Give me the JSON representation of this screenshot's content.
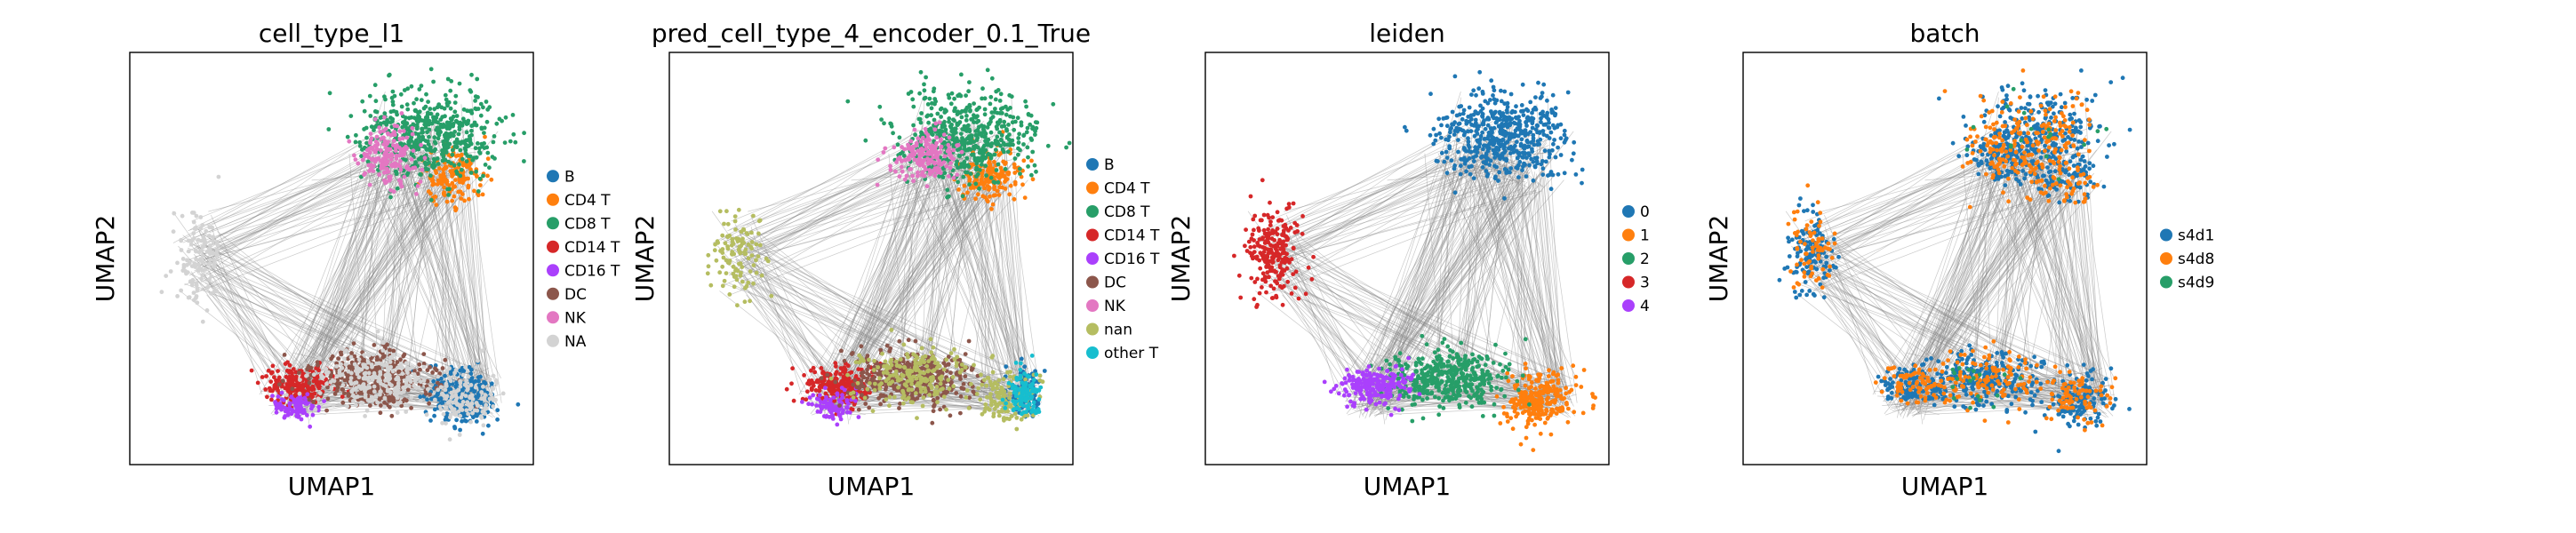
{
  "figure": {
    "background": "#ffffff"
  },
  "chart_data": [
    {
      "type": "scatter",
      "title": "cell_type_l1",
      "xlabel": "UMAP1",
      "ylabel": "UMAP2",
      "grid": false,
      "legend_position": "right",
      "edges": true,
      "categories": [
        {
          "name": "B",
          "color": "#1f77b4",
          "region": "bottom-right"
        },
        {
          "name": "CD4 T",
          "color": "#ff7f0e",
          "region": "top-right"
        },
        {
          "name": "CD8 T",
          "color": "#279e68",
          "region": "top"
        },
        {
          "name": "CD14 T",
          "color": "#d62728",
          "region": "bottom-left"
        },
        {
          "name": "CD16 T",
          "color": "#aa40fc",
          "region": "bottom-left-low"
        },
        {
          "name": "DC",
          "color": "#8c564b",
          "region": "bottom-mid"
        },
        {
          "name": "NK",
          "color": "#e377c2",
          "region": "top-left"
        },
        {
          "name": "NA",
          "color": "#d3d3d3",
          "region": "left-and-bottom"
        }
      ]
    },
    {
      "type": "scatter",
      "title": "pred_cell_type_4_encoder_0.1_True",
      "xlabel": "UMAP1",
      "ylabel": "UMAP2",
      "grid": false,
      "legend_position": "right",
      "edges": true,
      "categories": [
        {
          "name": "B",
          "color": "#1f77b4",
          "region": "bottom-right-edge"
        },
        {
          "name": "CD4 T",
          "color": "#ff7f0e",
          "region": "top-right"
        },
        {
          "name": "CD8 T",
          "color": "#279e68",
          "region": "top"
        },
        {
          "name": "CD14 T",
          "color": "#d62728",
          "region": "bottom-left"
        },
        {
          "name": "CD16 T",
          "color": "#aa40fc",
          "region": "bottom-left-low"
        },
        {
          "name": "DC",
          "color": "#8c564b",
          "region": "bottom-mid"
        },
        {
          "name": "NK",
          "color": "#e377c2",
          "region": "top-left"
        },
        {
          "name": "nan",
          "color": "#b5bd61",
          "region": "left-and-bottom"
        },
        {
          "name": "other T",
          "color": "#17becf",
          "region": "bottom-right-edge"
        }
      ]
    },
    {
      "type": "scatter",
      "title": "leiden",
      "xlabel": "UMAP1",
      "ylabel": "UMAP2",
      "grid": false,
      "legend_position": "right",
      "edges": true,
      "categories": [
        {
          "name": "0",
          "color": "#1f77b4",
          "region": "top"
        },
        {
          "name": "1",
          "color": "#ff7f0e",
          "region": "bottom-right"
        },
        {
          "name": "2",
          "color": "#279e68",
          "region": "bottom-mid"
        },
        {
          "name": "3",
          "color": "#d62728",
          "region": "left"
        },
        {
          "name": "4",
          "color": "#aa40fc",
          "region": "bottom-left"
        }
      ]
    },
    {
      "type": "scatter",
      "title": "batch",
      "xlabel": "UMAP1",
      "ylabel": "UMAP2",
      "grid": false,
      "legend_position": "right",
      "edges": true,
      "categories": [
        {
          "name": "s4d1",
          "color": "#1f77b4",
          "region": "all"
        },
        {
          "name": "s4d8",
          "color": "#ff7f0e",
          "region": "all"
        },
        {
          "name": "s4d9",
          "color": "#279e68",
          "region": "sparse"
        }
      ]
    }
  ]
}
